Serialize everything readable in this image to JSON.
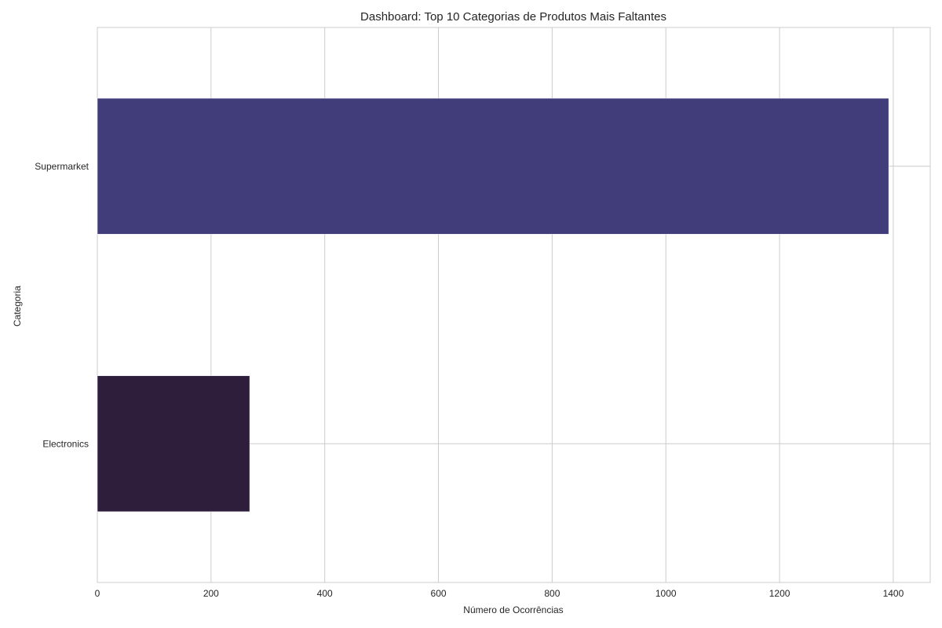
{
  "chart_data": {
    "type": "bar",
    "orientation": "horizontal",
    "title": "Dashboard: Top 10 Categorias de Produtos Mais Faltantes",
    "xlabel": "Número de Ocorrências",
    "ylabel": "Categoria",
    "categories": [
      "Supermarket",
      "Electronics"
    ],
    "values": [
      1392,
      268
    ],
    "colors": [
      "#413d7b",
      "#2e1e3b"
    ],
    "xlim": [
      0,
      1465
    ],
    "xticks": [
      0,
      200,
      400,
      600,
      800,
      1000,
      1200,
      1400
    ],
    "grid": true,
    "grid_color": "#cccccc",
    "legend": "none"
  }
}
